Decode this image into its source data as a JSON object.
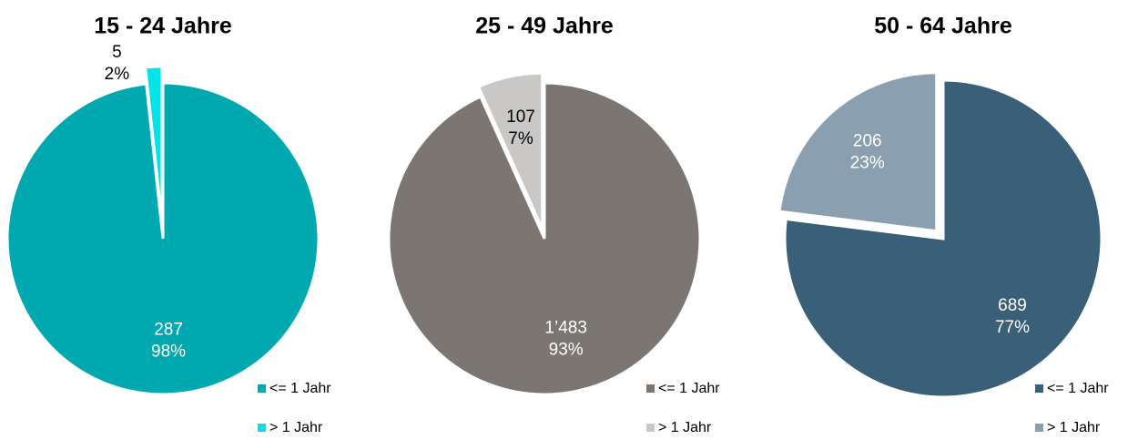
{
  "chart_data": [
    {
      "type": "pie",
      "title": "15 - 24 Jahre",
      "categories": [
        "<= 1 Jahr",
        "> 1 Jahr"
      ],
      "values": [
        287,
        5
      ],
      "percents": [
        98,
        2
      ],
      "percent_labels": [
        "98%",
        "2%"
      ],
      "colors": [
        "#00a9b0",
        "#00e3e8"
      ],
      "label_colors": [
        "#ffffff",
        "#000000"
      ],
      "explode": [
        false,
        true
      ]
    },
    {
      "type": "pie",
      "title": "25 - 49 Jahre",
      "categories": [
        "<= 1 Jahr",
        "> 1 Jahr"
      ],
      "values": [
        1483,
        107
      ],
      "value_labels": [
        "1’483",
        "107"
      ],
      "percents": [
        93,
        7
      ],
      "percent_labels": [
        "93%",
        "7%"
      ],
      "colors": [
        "#7b7672",
        "#c9c8c6"
      ],
      "label_colors": [
        "#ffffff",
        "#000000"
      ],
      "explode": [
        false,
        true
      ]
    },
    {
      "type": "pie",
      "title": "50 - 64 Jahre",
      "categories": [
        "<= 1 Jahr",
        "> 1 Jahr"
      ],
      "values": [
        689,
        206
      ],
      "percents": [
        77,
        23
      ],
      "percent_labels": [
        "77%",
        "23%"
      ],
      "colors": [
        "#3a5f78",
        "#8aa0b0"
      ],
      "label_colors": [
        "#ffffff",
        "#ffffff"
      ],
      "explode": [
        false,
        true
      ]
    }
  ]
}
